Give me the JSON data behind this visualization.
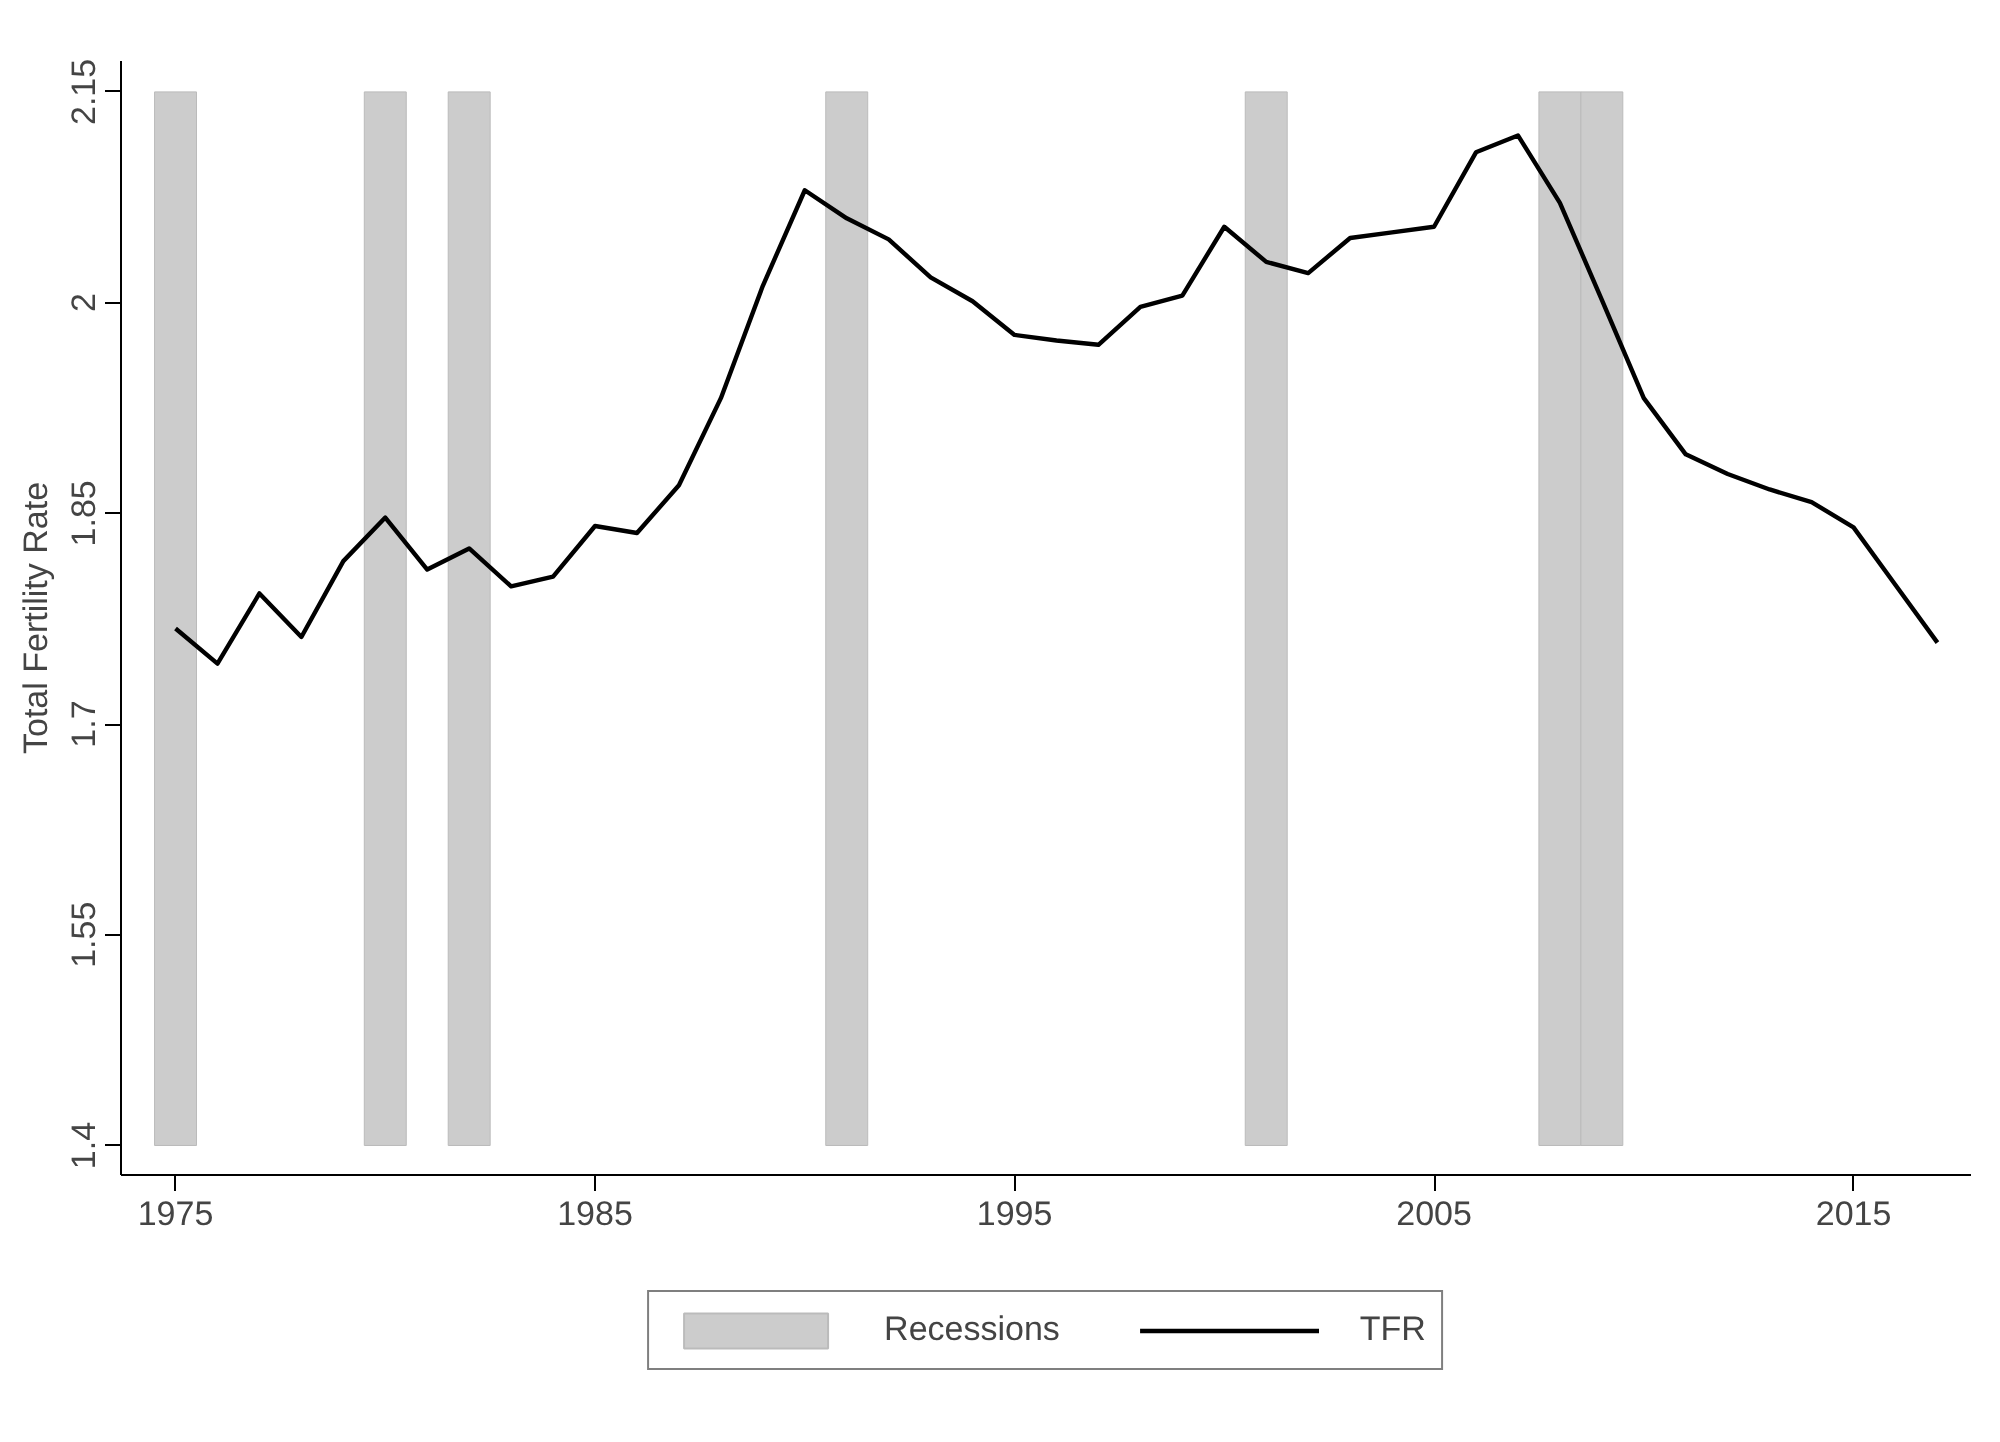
{
  "chart_data": {
    "type": "line",
    "ylabel": "Total Fertility Rate",
    "xlim": [
      1973.7,
      2017.8
    ],
    "xticks": [
      1975,
      1985,
      1995,
      2005,
      2015
    ],
    "ylim": [
      1.379,
      2.172
    ],
    "yticks": [
      1.4,
      1.55,
      1.7,
      1.85,
      2,
      2.15
    ],
    "grid": false,
    "legend": "bottom",
    "series": [
      {
        "name": "Recessions",
        "type": "bar",
        "color": "#cccccc",
        "x": [
          1975,
          1980,
          1982,
          1991,
          2001,
          2008,
          2009
        ],
        "base": [
          1.4,
          1.4,
          1.4,
          1.4,
          1.4,
          1.4,
          1.4
        ],
        "values": [
          0.75,
          0.75,
          0.75,
          0.75,
          0.75,
          0.75,
          0.75
        ]
      },
      {
        "name": "TFR",
        "color": "#000000",
        "x": [
          1975,
          1976,
          1977,
          1978,
          1979,
          1980,
          1981,
          1982,
          1983,
          1984,
          1985,
          1986,
          1987,
          1988,
          1989,
          1990,
          1991,
          1992,
          1993,
          1994,
          1995,
          1996,
          1997,
          1998,
          1999,
          2000,
          2001,
          2002,
          2003,
          2004,
          2005,
          2006,
          2007,
          2008,
          2009,
          2010,
          2011,
          2012,
          2013,
          2014,
          2015,
          2016,
          2017
        ],
        "values": [
          1.768,
          1.743,
          1.793,
          1.762,
          1.816,
          1.847,
          1.81,
          1.825,
          1.798,
          1.805,
          1.841,
          1.836,
          1.87,
          1.932,
          2.012,
          2.08,
          2.06,
          2.045,
          2.018,
          2.001,
          1.977,
          1.973,
          1.97,
          1.997,
          2.005,
          2.054,
          2.029,
          2.021,
          2.046,
          2.05,
          2.054,
          2.107,
          2.119,
          2.071,
          2.002,
          1.932,
          1.892,
          1.878,
          1.867,
          1.858,
          1.84,
          1.799,
          1.758
        ]
      }
    ]
  }
}
